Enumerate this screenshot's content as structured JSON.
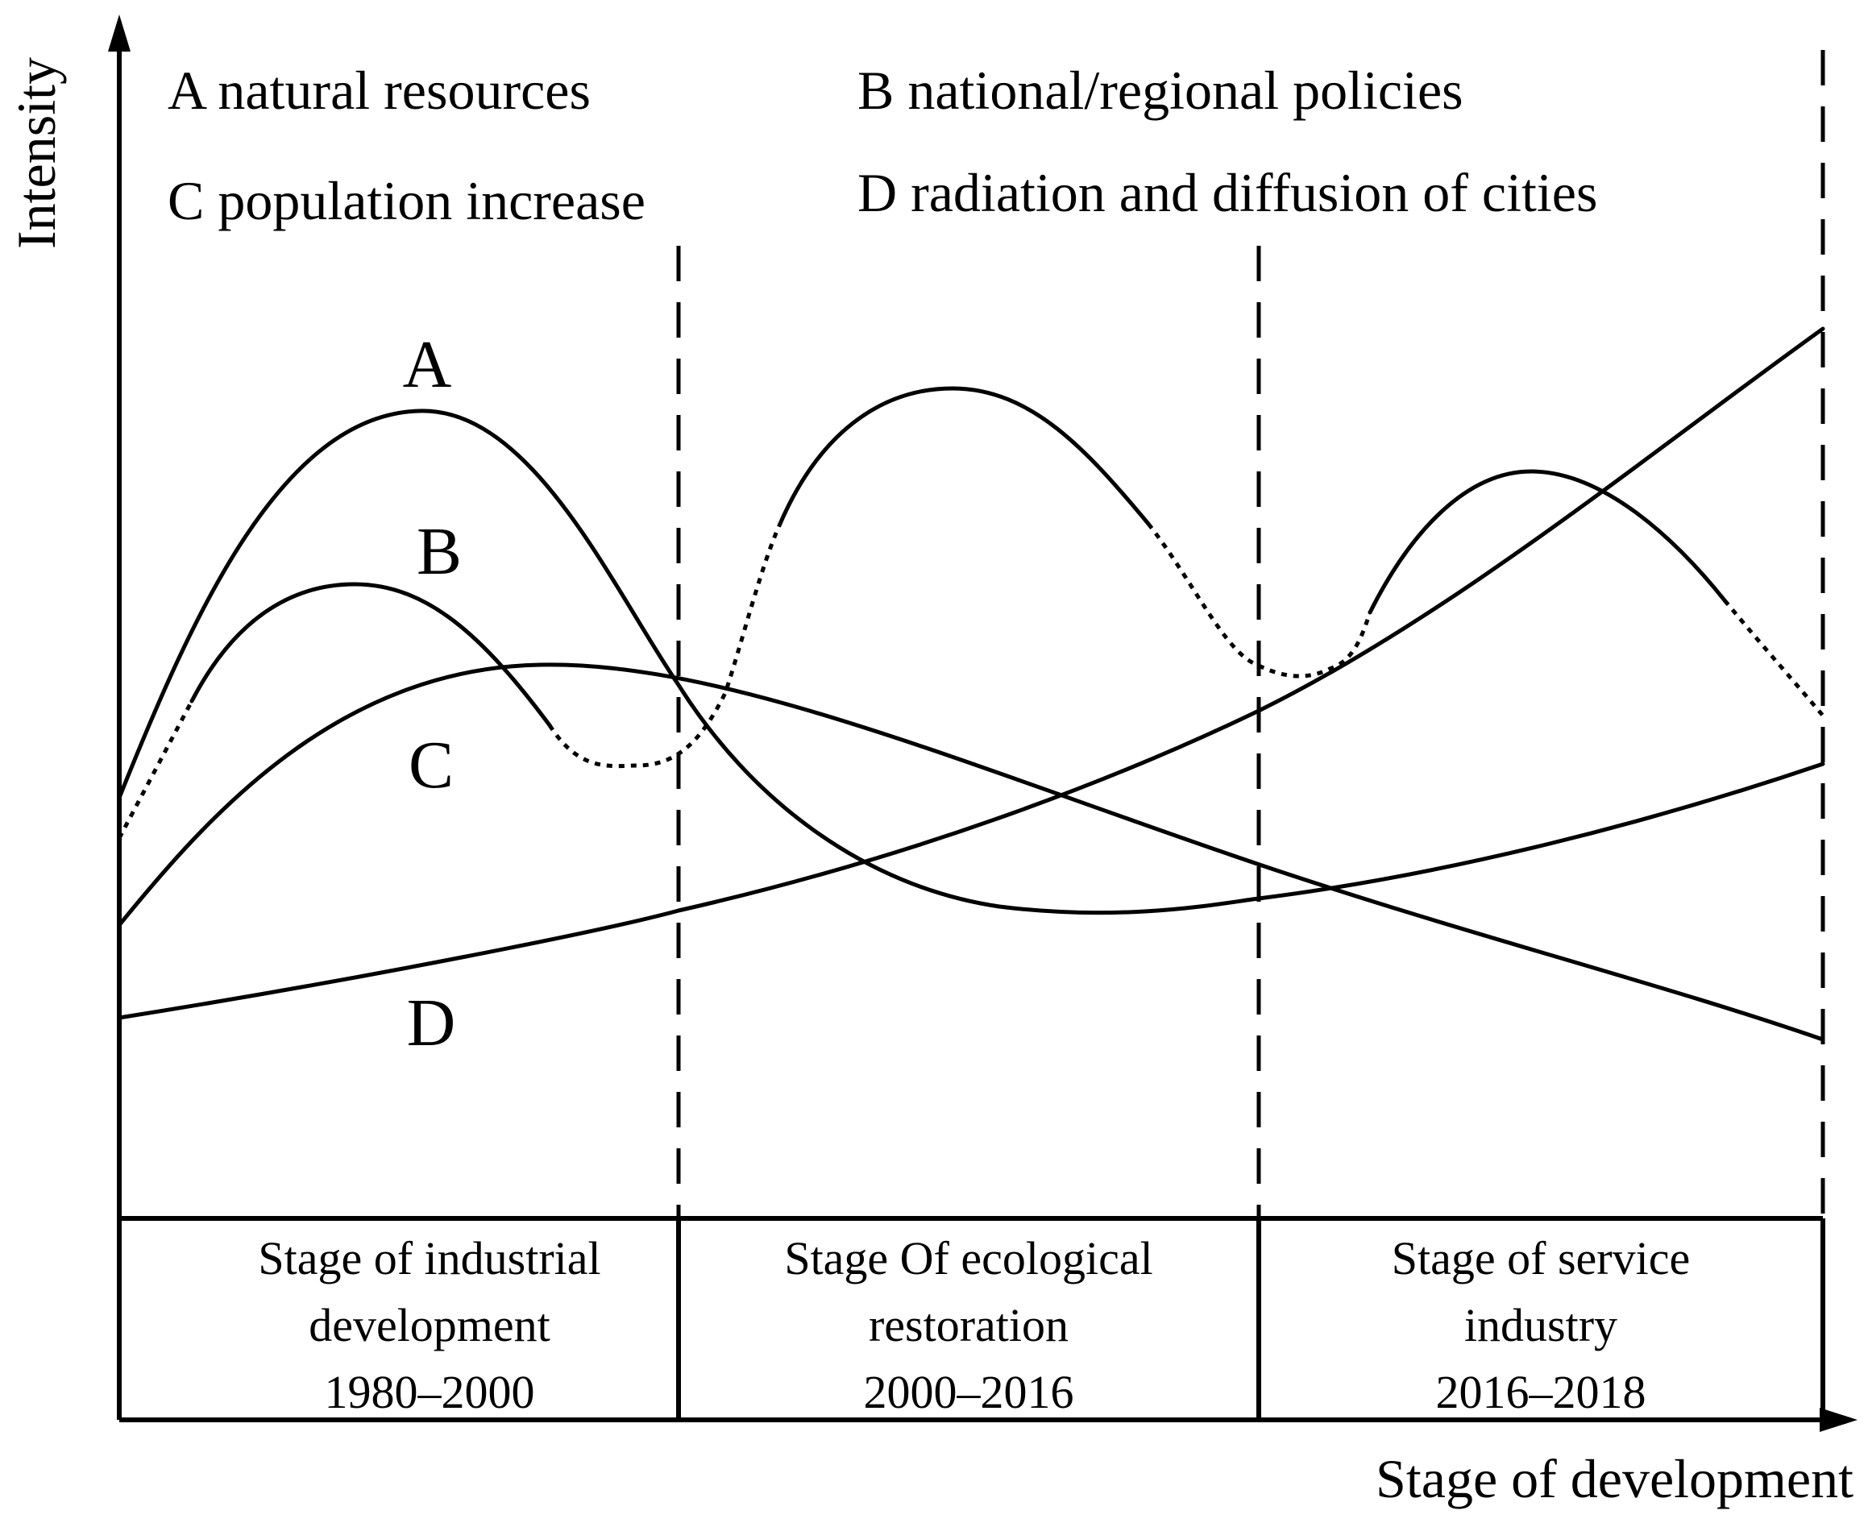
{
  "axes": {
    "y_label": "Intensity",
    "x_label": "Stage of development"
  },
  "legend": {
    "a": "A natural resources",
    "b": "B national/regional policies",
    "c": "C population increase",
    "d": "D radiation and diffusion of cities"
  },
  "curve_labels": {
    "a": "A",
    "b": "B",
    "c": "C",
    "d": "D"
  },
  "stages": [
    {
      "line1": "Stage of industrial",
      "line2": "development",
      "years": "1980–2000"
    },
    {
      "line1": "Stage Of ecological",
      "line2": "restoration",
      "years": "2000–2016"
    },
    {
      "line1": "Stage of service",
      "line2": "industry",
      "years": "2016–2018"
    }
  ]
}
